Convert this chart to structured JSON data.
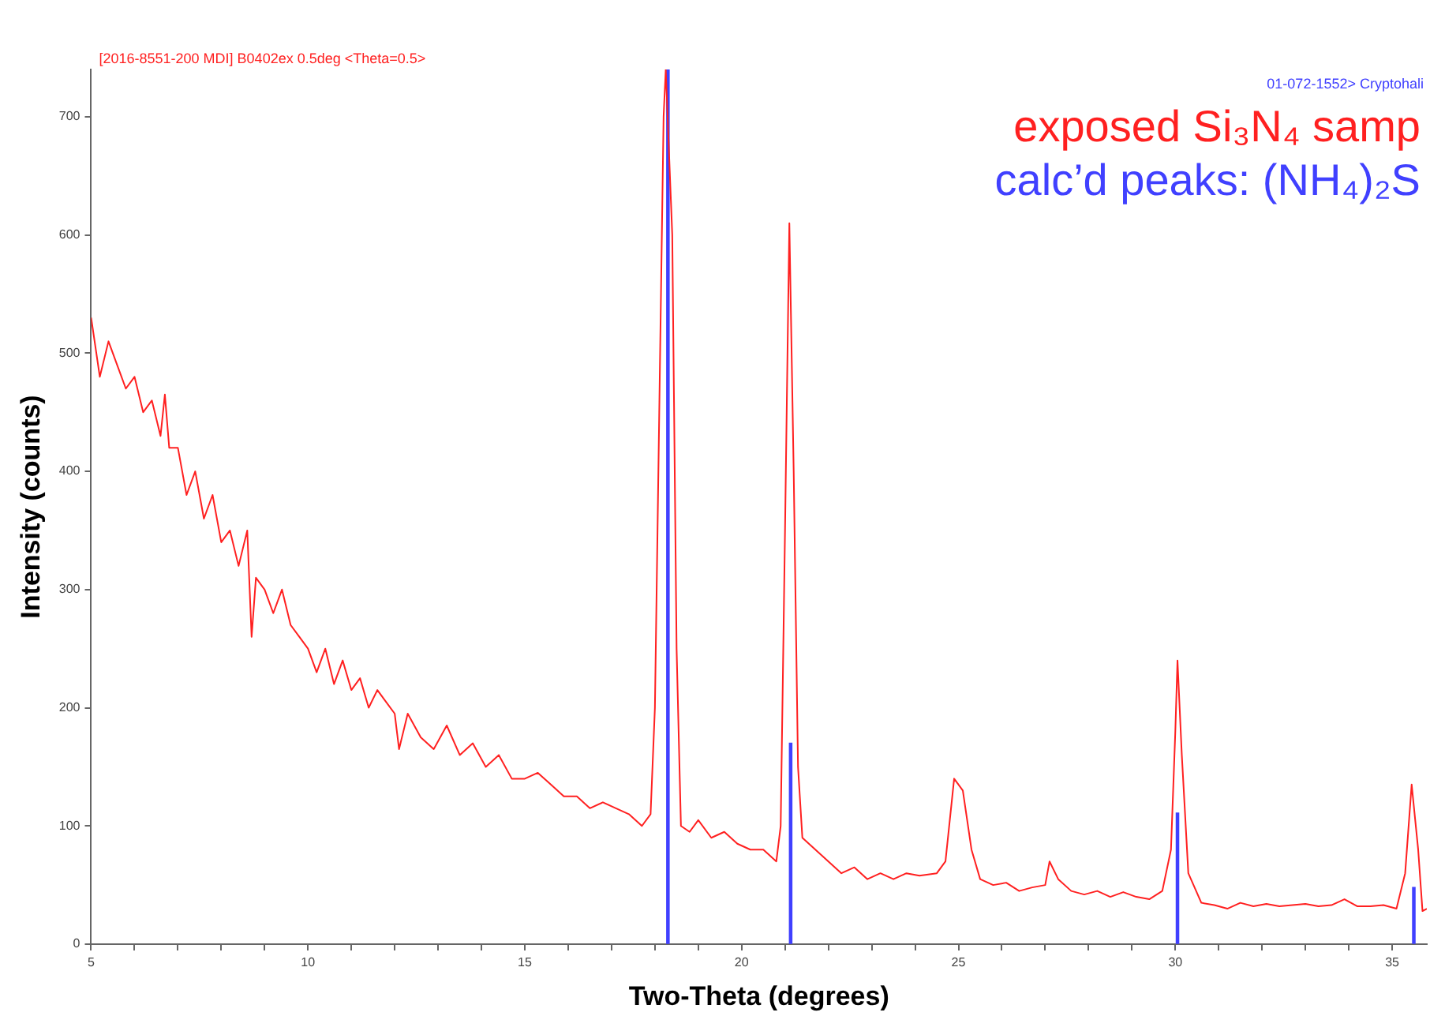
{
  "chart_data": {
    "type": "line",
    "xlabel": "Two-Theta (degrees)",
    "ylabel": "Intensity (counts)",
    "annotations": [
      "[2016-8551-200 MDI] B0402ex 0.5deg <Theta=0.5>",
      "01-072-1552> Cryptohali"
    ],
    "xlim": [
      5,
      35.8
    ],
    "ylim": [
      0,
      740
    ],
    "xticks": [
      5,
      {
        "value": 6,
        "label": null
      },
      {
        "value": 7,
        "label": null
      },
      {
        "value": 8,
        "label": null
      },
      {
        "value": 9,
        "label": null
      },
      10,
      {
        "value": 11,
        "label": null
      },
      {
        "value": 12,
        "label": null
      },
      {
        "value": 13,
        "label": null
      },
      {
        "value": 14,
        "label": null
      },
      15,
      {
        "value": 16,
        "label": null
      },
      {
        "value": 17,
        "label": null
      },
      {
        "value": 18,
        "label": null
      },
      {
        "value": 19,
        "label": null
      },
      20,
      {
        "value": 21,
        "label": null
      },
      {
        "value": 22,
        "label": null
      },
      {
        "value": 23,
        "label": null
      },
      {
        "value": 24,
        "label": null
      },
      25,
      {
        "value": 26,
        "label": null
      },
      {
        "value": 27,
        "label": null
      },
      {
        "value": 28,
        "label": null
      },
      {
        "value": 29,
        "label": null
      },
      30,
      {
        "value": 31,
        "label": null
      },
      {
        "value": 32,
        "label": null
      },
      {
        "value": 33,
        "label": null
      },
      {
        "value": 34,
        "label": null
      },
      35
    ],
    "yticks": [
      0,
      100,
      200,
      300,
      400,
      500,
      600,
      700
    ],
    "grid": false,
    "legend": "top right",
    "marker": "none",
    "line_style": "solid",
    "series": [
      {
        "name": "exposed Si₃N₄ samp",
        "color": "#ff2020",
        "x": [
          5,
          5.2,
          5.4,
          5.6,
          5.8,
          6.0,
          6.2,
          6.4,
          6.6,
          6.7,
          6.8,
          7.0,
          7.2,
          7.4,
          7.6,
          7.8,
          8.0,
          8.2,
          8.4,
          8.6,
          8.7,
          8.8,
          9.0,
          9.2,
          9.4,
          9.6,
          9.8,
          10.0,
          10.2,
          10.4,
          10.6,
          10.8,
          11.0,
          11.2,
          11.4,
          11.6,
          11.8,
          12.0,
          12.1,
          12.3,
          12.6,
          12.9,
          13.2,
          13.5,
          13.8,
          14.1,
          14.4,
          14.7,
          15.0,
          15.3,
          15.6,
          15.9,
          16.2,
          16.5,
          16.8,
          17.1,
          17.4,
          17.7,
          17.9,
          18.0,
          18.1,
          18.2,
          18.25,
          18.4,
          18.5,
          18.6,
          18.8,
          19.0,
          19.3,
          19.6,
          19.9,
          20.2,
          20.5,
          20.8,
          20.9,
          21.0,
          21.1,
          21.2,
          21.3,
          21.4,
          21.7,
          22.0,
          22.3,
          22.6,
          22.9,
          23.2,
          23.5,
          23.8,
          24.1,
          24.5,
          24.7,
          24.9,
          25.1,
          25.3,
          25.5,
          25.8,
          26.1,
          26.4,
          26.7,
          27.0,
          27.1,
          27.3,
          27.6,
          27.9,
          28.2,
          28.5,
          28.8,
          29.1,
          29.4,
          29.7,
          29.9,
          30.0,
          30.05,
          30.15,
          30.3,
          30.6,
          30.9,
          31.2,
          31.5,
          31.8,
          32.1,
          32.4,
          32.7,
          33.0,
          33.3,
          33.6,
          33.9,
          34.2,
          34.5,
          34.8,
          35.1,
          35.3,
          35.45,
          35.6,
          35.7,
          35.8
        ],
        "values": [
          530,
          480,
          510,
          490,
          470,
          480,
          450,
          460,
          430,
          465,
          420,
          420,
          380,
          400,
          360,
          380,
          340,
          350,
          320,
          350,
          260,
          310,
          300,
          280,
          300,
          270,
          260,
          250,
          230,
          250,
          220,
          240,
          215,
          225,
          200,
          215,
          205,
          195,
          165,
          195,
          175,
          165,
          185,
          160,
          170,
          150,
          160,
          140,
          140,
          145,
          135,
          125,
          125,
          115,
          120,
          115,
          110,
          100,
          110,
          200,
          450,
          700,
          740,
          600,
          250,
          100,
          95,
          105,
          90,
          95,
          85,
          80,
          80,
          70,
          100,
          350,
          610,
          400,
          150,
          90,
          80,
          70,
          60,
          65,
          55,
          60,
          55,
          60,
          58,
          60,
          70,
          140,
          130,
          80,
          55,
          50,
          52,
          45,
          48,
          50,
          70,
          55,
          45,
          42,
          45,
          40,
          44,
          40,
          38,
          45,
          80,
          180,
          240,
          160,
          60,
          35,
          33,
          30,
          35,
          32,
          34,
          32,
          33,
          34,
          32,
          33,
          38,
          32,
          32,
          33,
          30,
          60,
          135,
          80,
          28,
          30
        ]
      },
      {
        "name": "calc’d peaks: (NH₄)₂S",
        "color": "#4040ff",
        "type": "bar",
        "x": [
          18.3,
          21.13,
          30.05,
          35.5
        ],
        "values": [
          740,
          170,
          111,
          48
        ]
      }
    ]
  }
}
